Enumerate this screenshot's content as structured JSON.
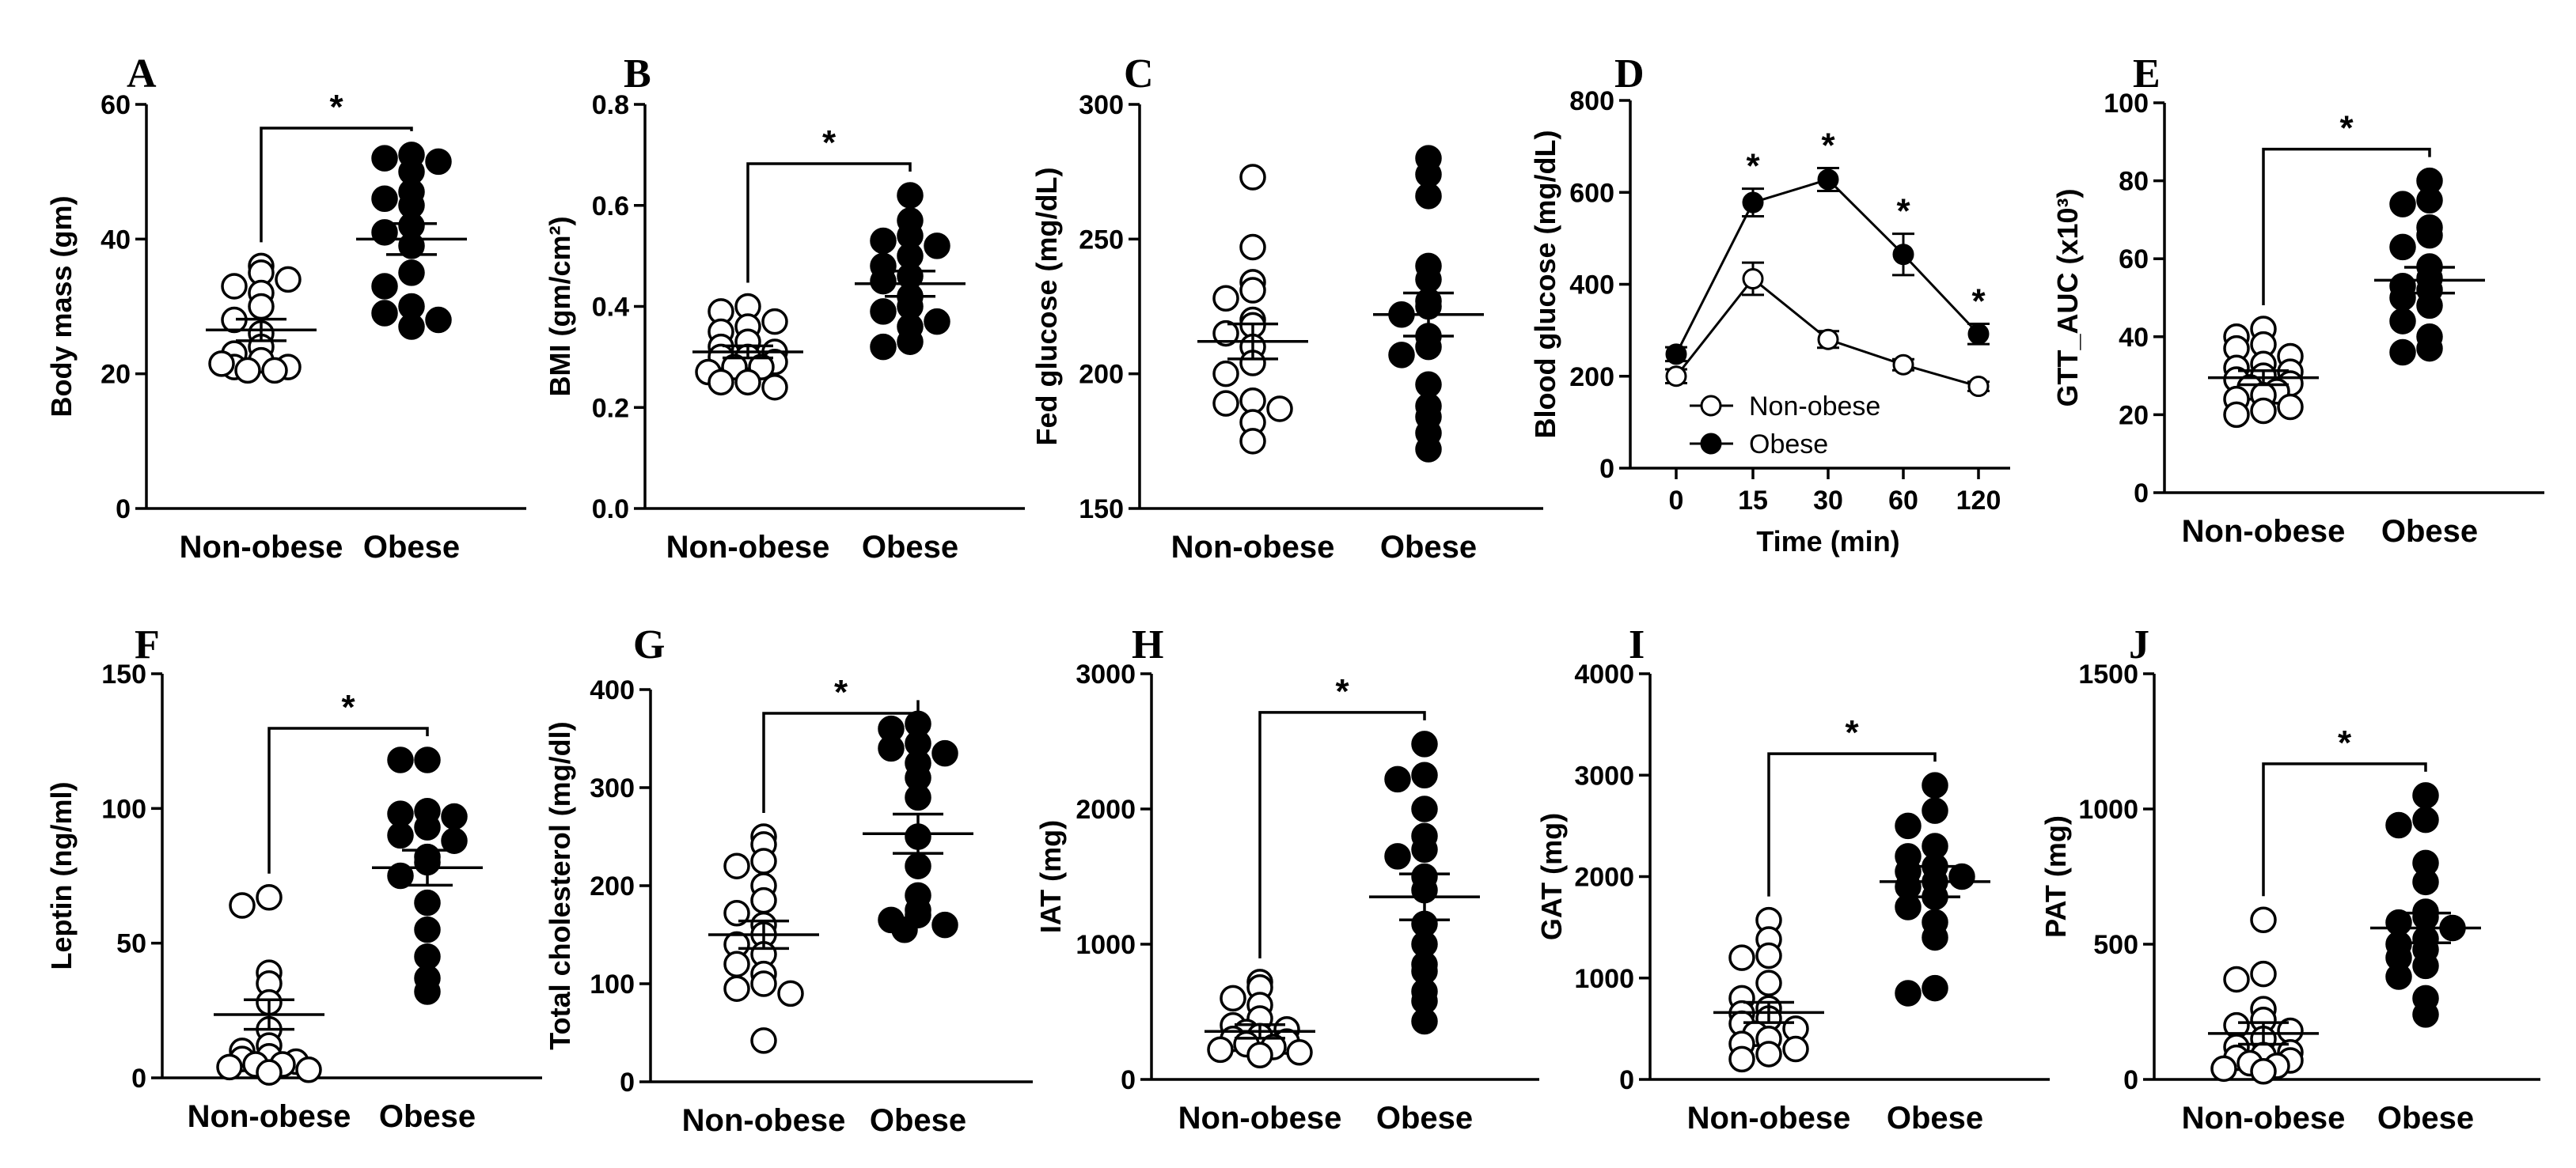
{
  "chart_data": [
    {
      "id": "A",
      "type": "scatter",
      "title": "",
      "ylabel": "Body mass (gm)",
      "categories": [
        "Non-obese",
        "Obese"
      ],
      "ylim": [
        0,
        60
      ],
      "yticks": [
        0,
        20,
        40,
        60
      ],
      "tick_labels": [
        "0",
        "20",
        "40",
        "60"
      ],
      "significance": "*",
      "groups": [
        {
          "name": "Non-obese",
          "fill": "#ffffff",
          "mean": 26.5,
          "sem": 1.6,
          "values": [
            36,
            35,
            33,
            34,
            32,
            30,
            28,
            26,
            24,
            23,
            22,
            21,
            21,
            20.5,
            20.5,
            21.5
          ]
        },
        {
          "name": "Obese",
          "fill": "#000000",
          "mean": 40,
          "sem": 2.3,
          "values": [
            52.5,
            52,
            51.5,
            50,
            47,
            46,
            45,
            42,
            41,
            39,
            35,
            33,
            30,
            29,
            28,
            27
          ]
        }
      ]
    },
    {
      "id": "B",
      "type": "scatter",
      "title": "",
      "ylabel": "BMI (gm/cm²)",
      "categories": [
        "Non-obese",
        "Obese"
      ],
      "ylim": [
        0,
        0.8
      ],
      "yticks": [
        0,
        0.2,
        0.4,
        0.6,
        0.8
      ],
      "tick_labels": [
        "0.0",
        "0.2",
        "0.4",
        "0.6",
        "0.8"
      ],
      "significance": "*",
      "groups": [
        {
          "name": "Non-obese",
          "fill": "#ffffff",
          "mean": 0.31,
          "sem": 0.012,
          "values": [
            0.4,
            0.39,
            0.37,
            0.36,
            0.35,
            0.33,
            0.32,
            0.31,
            0.3,
            0.3,
            0.29,
            0.28,
            0.28,
            0.27,
            0.25,
            0.25,
            0.24
          ]
        },
        {
          "name": "Obese",
          "fill": "#000000",
          "mean": 0.445,
          "sem": 0.025,
          "values": [
            0.62,
            0.57,
            0.54,
            0.53,
            0.52,
            0.5,
            0.48,
            0.46,
            0.45,
            0.42,
            0.4,
            0.39,
            0.37,
            0.36,
            0.33,
            0.32
          ]
        }
      ]
    },
    {
      "id": "C",
      "type": "scatter",
      "title": "",
      "ylabel": "Fed glucose (mg/dL)",
      "categories": [
        "Non-obese",
        "Obese"
      ],
      "ylim": [
        150,
        300
      ],
      "yticks": [
        150,
        200,
        250,
        300
      ],
      "tick_labels": [
        "150",
        "200",
        "250",
        "300"
      ],
      "significance": "",
      "groups": [
        {
          "name": "Non-obese",
          "fill": "#ffffff",
          "mean": 212,
          "sem": 6.5,
          "values": [
            273,
            247,
            234,
            231,
            228,
            220,
            218,
            215,
            210,
            204,
            200,
            190,
            189,
            187,
            182,
            175
          ]
        },
        {
          "name": "Obese",
          "fill": "#000000",
          "mean": 222,
          "sem": 8,
          "values": [
            280,
            274,
            266,
            240,
            235,
            227,
            225,
            222,
            214,
            210,
            207,
            196,
            188,
            184,
            178,
            172
          ]
        }
      ]
    },
    {
      "id": "D",
      "type": "line",
      "title": "",
      "xlabel": "Time (min)",
      "ylabel": "Blood glucose (mg/dL)",
      "x": [
        0,
        15,
        30,
        60,
        120
      ],
      "x_tick_labels": [
        "0",
        "15",
        "30",
        "60",
        "120"
      ],
      "ylim": [
        0,
        800
      ],
      "yticks": [
        0,
        200,
        400,
        600,
        800
      ],
      "tick_labels": [
        "0",
        "200",
        "400",
        "600",
        "800"
      ],
      "significance_marks": [
        "",
        "*",
        "*",
        "*",
        "*"
      ],
      "legend": {
        "placement": "bottom-right",
        "entries": [
          "Non-obese",
          "Obese"
        ]
      },
      "series": [
        {
          "name": "Non-obese",
          "fill": "#ffffff",
          "values": [
            200,
            412,
            280,
            225,
            178
          ],
          "sem": [
            15,
            35,
            18,
            12,
            10
          ]
        },
        {
          "name": "Obese",
          "fill": "#000000",
          "values": [
            248,
            578,
            628,
            465,
            292
          ],
          "sem": [
            15,
            30,
            25,
            45,
            22
          ]
        }
      ]
    },
    {
      "id": "E",
      "type": "scatter",
      "title": "",
      "ylabel": "GTT_AUC (x10³)",
      "categories": [
        "Non-obese",
        "Obese"
      ],
      "ylim": [
        0,
        100
      ],
      "yticks": [
        0,
        20,
        40,
        60,
        80,
        100
      ],
      "tick_labels": [
        "0",
        "20",
        "40",
        "60",
        "80",
        "100"
      ],
      "significance": "*",
      "groups": [
        {
          "name": "Non-obese",
          "fill": "#ffffff",
          "mean": 29.5,
          "sem": 1.8,
          "values": [
            42,
            40,
            38,
            37,
            35,
            33,
            32,
            31,
            30,
            29,
            28,
            27,
            26,
            25,
            24,
            22,
            21,
            20
          ]
        },
        {
          "name": "Obese",
          "fill": "#000000",
          "mean": 54.5,
          "sem": 3.3,
          "values": [
            80,
            75,
            74,
            68,
            66,
            63,
            58,
            55,
            53,
            52,
            50,
            48,
            44,
            40,
            37,
            36
          ]
        }
      ]
    },
    {
      "id": "F",
      "type": "scatter",
      "title": "",
      "ylabel": "Leptin (ng/ml)",
      "categories": [
        "Non-obese",
        "Obese"
      ],
      "ylim": [
        0,
        150
      ],
      "yticks": [
        0,
        50,
        100,
        150
      ],
      "tick_labels": [
        "0",
        "50",
        "100",
        "150"
      ],
      "significance": "*",
      "groups": [
        {
          "name": "Non-obese",
          "fill": "#ffffff",
          "mean": 23.5,
          "sem": 5.5,
          "values": [
            67,
            64,
            39,
            35,
            28,
            18,
            12,
            10,
            8,
            7,
            6,
            5,
            5,
            4,
            3,
            2
          ]
        },
        {
          "name": "Obese",
          "fill": "#000000",
          "mean": 78,
          "sem": 6.5,
          "values": [
            118,
            118,
            99,
            98,
            97,
            93,
            90,
            88,
            82,
            80,
            75,
            65,
            55,
            45,
            37,
            32
          ]
        }
      ]
    },
    {
      "id": "G",
      "type": "scatter",
      "title": "",
      "ylabel": "Total cholesterol (mg/dl)",
      "categories": [
        "Non-obese",
        "Obese"
      ],
      "ylim": [
        0,
        400
      ],
      "yticks": [
        0,
        100,
        200,
        300,
        400
      ],
      "tick_labels": [
        "0",
        "100",
        "200",
        "300",
        "400"
      ],
      "significance": "*",
      "groups": [
        {
          "name": "Non-obese",
          "fill": "#ffffff",
          "mean": 150,
          "sem": 14,
          "values": [
            250,
            242,
            225,
            220,
            200,
            185,
            172,
            160,
            150,
            140,
            130,
            120,
            110,
            100,
            95,
            90,
            42
          ]
        },
        {
          "name": "Obese",
          "fill": "#000000",
          "mean": 253,
          "sem": 20,
          "values": [
            365,
            360,
            345,
            340,
            335,
            325,
            310,
            290,
            250,
            220,
            190,
            175,
            170,
            165,
            160,
            155
          ]
        }
      ]
    },
    {
      "id": "H",
      "type": "scatter",
      "title": "",
      "ylabel": "IAT (mg)",
      "categories": [
        "Non-obese",
        "Obese"
      ],
      "ylim": [
        0,
        3000
      ],
      "yticks": [
        0,
        1000,
        2000,
        3000
      ],
      "tick_labels": [
        "0",
        "1000",
        "2000",
        "3000"
      ],
      "significance": "*",
      "groups": [
        {
          "name": "Non-obese",
          "fill": "#ffffff",
          "mean": 355,
          "sem": 50,
          "values": [
            720,
            680,
            600,
            550,
            450,
            400,
            370,
            350,
            320,
            300,
            280,
            260,
            240,
            220,
            200,
            180
          ]
        },
        {
          "name": "Obese",
          "fill": "#000000",
          "mean": 1350,
          "sem": 170,
          "values": [
            2480,
            2250,
            2220,
            2000,
            1800,
            1700,
            1650,
            1500,
            1400,
            1150,
            1000,
            850,
            800,
            650,
            580,
            430
          ]
        }
      ]
    },
    {
      "id": "I",
      "type": "scatter",
      "title": "",
      "ylabel": "GAT (mg)",
      "categories": [
        "Non-obese",
        "Obese"
      ],
      "ylim": [
        0,
        4000
      ],
      "yticks": [
        0,
        1000,
        2000,
        3000,
        4000
      ],
      "tick_labels": [
        "0",
        "1000",
        "2000",
        "3000",
        "4000"
      ],
      "significance": "*",
      "groups": [
        {
          "name": "Non-obese",
          "fill": "#ffffff",
          "mean": 660,
          "sem": 100,
          "values": [
            1570,
            1380,
            1220,
            1200,
            950,
            800,
            700,
            650,
            600,
            550,
            500,
            450,
            400,
            350,
            300,
            250,
            200
          ]
        },
        {
          "name": "Obese",
          "fill": "#000000",
          "mean": 1950,
          "sem": 150,
          "values": [
            2900,
            2650,
            2500,
            2300,
            2200,
            2100,
            2050,
            2000,
            1950,
            1900,
            1800,
            1700,
            1550,
            1400,
            900,
            850
          ]
        }
      ]
    },
    {
      "id": "J",
      "type": "scatter",
      "title": "",
      "ylabel": "PAT (mg)",
      "categories": [
        "Non-obese",
        "Obese"
      ],
      "ylim": [
        0,
        1500
      ],
      "yticks": [
        0,
        500,
        1000,
        1500
      ],
      "tick_labels": [
        "0",
        "500",
        "1000",
        "1500"
      ],
      "significance": "*",
      "groups": [
        {
          "name": "Non-obese",
          "fill": "#ffffff",
          "mean": 170,
          "sem": 40,
          "values": [
            590,
            390,
            370,
            260,
            220,
            200,
            180,
            150,
            120,
            100,
            90,
            80,
            70,
            60,
            50,
            40,
            30
          ]
        },
        {
          "name": "Obese",
          "fill": "#000000",
          "mean": 560,
          "sem": 55,
          "values": [
            1050,
            960,
            940,
            800,
            730,
            620,
            600,
            580,
            560,
            520,
            500,
            480,
            450,
            420,
            380,
            300,
            240
          ]
        }
      ]
    }
  ]
}
